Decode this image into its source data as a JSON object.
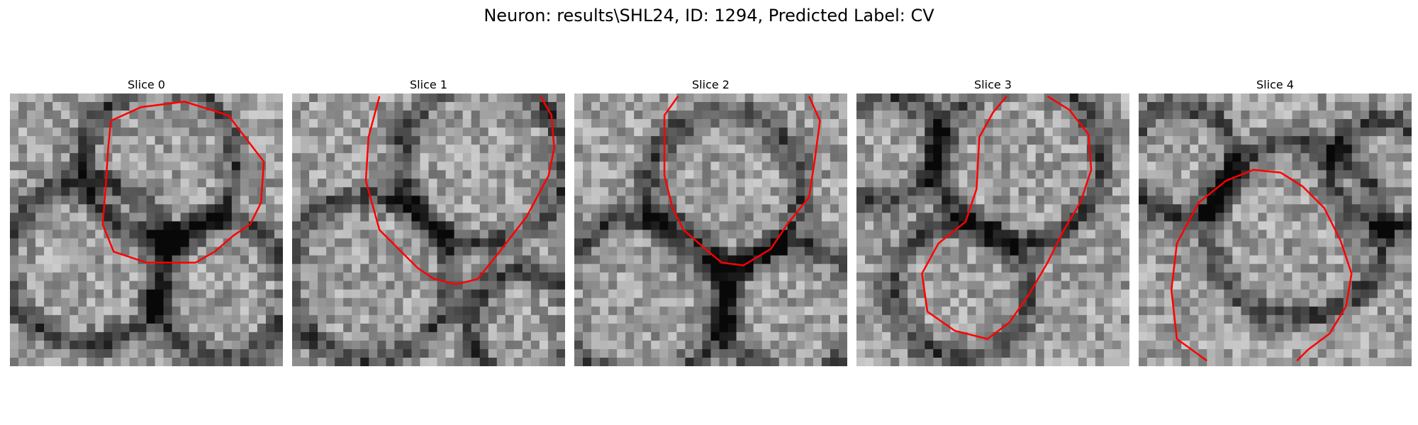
{
  "figure": {
    "title": "Neuron: results\\SHL24, ID: 1294, Predicted Label: CV"
  },
  "panels": [
    {
      "label": "Slice 0"
    },
    {
      "label": "Slice 1"
    },
    {
      "label": "Slice 2"
    },
    {
      "label": "Slice 3"
    },
    {
      "label": "Slice 4"
    }
  ],
  "colors": {
    "contour": "#ff0000"
  }
}
